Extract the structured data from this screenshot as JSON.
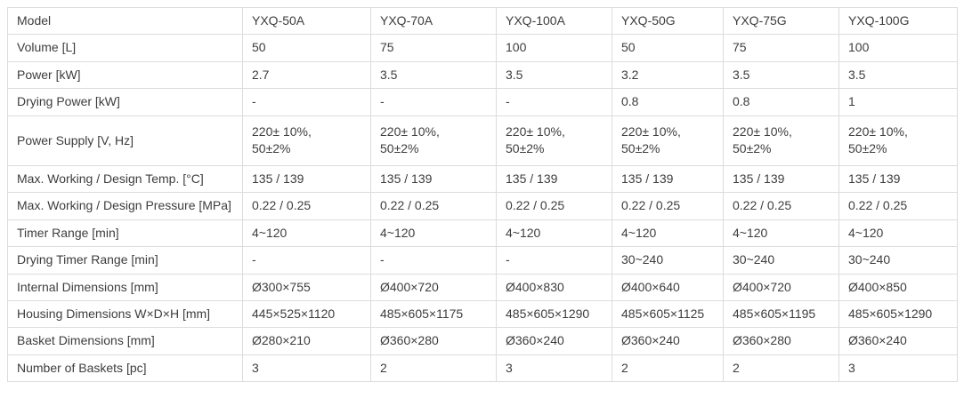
{
  "colors": {
    "border": "#dcdcdc",
    "text": "#3d3d3d",
    "background": "#ffffff"
  },
  "chart_data": {
    "type": "table",
    "columns": [
      "Model",
      "YXQ-50A",
      "YXQ-70A",
      "YXQ-100A",
      "YXQ-50G",
      "YXQ-75G",
      "YXQ-100G"
    ],
    "rows": [
      {
        "label": "Volume [L]",
        "values": [
          "50",
          "75",
          "100",
          "50",
          "75",
          "100"
        ]
      },
      {
        "label": "Power [kW]",
        "values": [
          "2.7",
          "3.5",
          "3.5",
          "3.2",
          "3.5",
          "3.5"
        ]
      },
      {
        "label": "Drying Power [kW]",
        "values": [
          "-",
          "-",
          "-",
          "0.8",
          "0.8",
          "1"
        ]
      },
      {
        "label": "Power Supply [V, Hz]",
        "values": [
          "220± 10%,\n50±2%",
          "220± 10%,\n50±2%",
          "220± 10%,\n50±2%",
          "220± 10%,\n50±2%",
          "220± 10%,\n50±2%",
          "220± 10%,\n50±2%"
        ]
      },
      {
        "label": "Max. Working / Design Temp. [°C]",
        "values": [
          "135 / 139",
          "135 / 139",
          "135 / 139",
          "135 / 139",
          "135 / 139",
          "135 / 139"
        ]
      },
      {
        "label": "Max. Working / Design Pressure [MPa]",
        "values": [
          "0.22 / 0.25",
          "0.22 / 0.25",
          "0.22 / 0.25",
          "0.22 / 0.25",
          "0.22 / 0.25",
          "0.22 / 0.25"
        ]
      },
      {
        "label": "Timer Range [min]",
        "values": [
          "4~120",
          "4~120",
          "4~120",
          "4~120",
          "4~120",
          "4~120"
        ]
      },
      {
        "label": "Drying Timer Range [min]",
        "values": [
          "-",
          "-",
          "-",
          "30~240",
          "30~240",
          "30~240"
        ]
      },
      {
        "label": "Internal Dimensions [mm]",
        "values": [
          "Ø300×755",
          "Ø400×720",
          "Ø400×830",
          "Ø400×640",
          "Ø400×720",
          "Ø400×850"
        ]
      },
      {
        "label": "Housing Dimensions W×D×H [mm]",
        "values": [
          "445×525×1120",
          "485×605×1175",
          "485×605×1290",
          "485×605×1125",
          "485×605×1195",
          "485×605×1290"
        ]
      },
      {
        "label": "Basket Dimensions [mm]",
        "values": [
          "Ø280×210",
          "Ø360×280",
          "Ø360×240",
          "Ø360×240",
          "Ø360×280",
          "Ø360×240"
        ]
      },
      {
        "label": "Number of Baskets [pc]",
        "values": [
          "3",
          "2",
          "3",
          "2",
          "2",
          "3"
        ]
      }
    ]
  }
}
